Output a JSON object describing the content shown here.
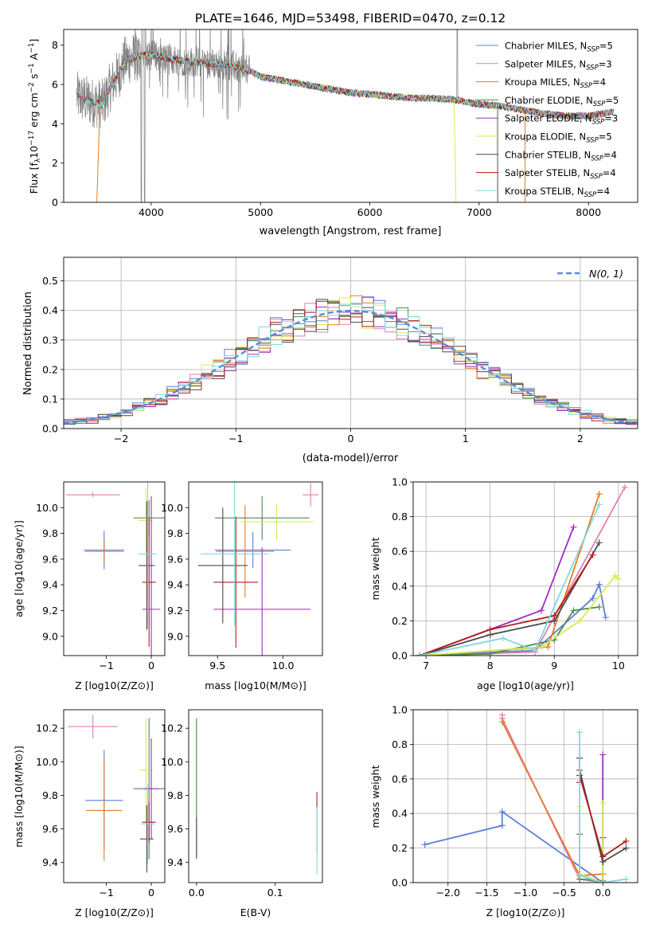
{
  "title": "PLATE=1646, MJD=53498, FIBERID=0470, z=0.12",
  "colors": {
    "Chabrier MILES": "#5b7fd6",
    "Salpeter MILES": "#e27fb5",
    "Kroupa MILES": "#e87a20",
    "Chabrier ELODIE": "#4f8a52",
    "Salpeter ELODIE": "#9d2ec0",
    "Kroupa ELODIE": "#d7ea55",
    "Chabrier STELIB": "#4a4a4a",
    "Salpeter STELIB": "#b11d1d",
    "Kroupa STELIB": "#7fd9dc",
    "data": "#7f7f7f",
    "gaussian": "#5b8ad6"
  },
  "chart_data": [
    {
      "id": "spectrum",
      "type": "line",
      "title": "PLATE=1646, MJD=53498, FIBERID=0470, z=0.12",
      "xlabel": "wavelength [Angstrom, rest frame]",
      "ylabel_main": "Flux [f",
      "ylabel_sub": "λ",
      "ylabel_rest": "10",
      "ylabel_exp": "−17",
      "ylabel_units": "erg cm",
      "ylabel_units_sup": "−2",
      "ylabel_s": "s",
      "ylabel_s_sup": "−1",
      "ylabel_A": "A",
      "ylabel_A_sup": "−1",
      "ylabel_close": "]",
      "xlim": [
        3200,
        8450
      ],
      "ylim": [
        0,
        8.8
      ],
      "xticks": [
        4000,
        5000,
        6000,
        7000,
        8000
      ],
      "xticklabels": [
        "4000",
        "5000",
        "6000",
        "7000",
        "8000"
      ],
      "yticks": [
        0,
        2,
        4,
        6,
        8
      ],
      "yticklabels": [
        "0",
        "2",
        "4",
        "6",
        "8"
      ],
      "legend_position": "upper-right",
      "legend": [
        {
          "name": "Chabrier MILES",
          "nssp": "5"
        },
        {
          "name": "Salpeter MILES",
          "nssp": "3"
        },
        {
          "name": "Kroupa MILES",
          "nssp": "4"
        },
        {
          "name": "Chabrier ELODIE",
          "nssp": "5"
        },
        {
          "name": "Salpeter ELODIE",
          "nssp": "3"
        },
        {
          "name": "Kroupa ELODIE",
          "nssp": "5"
        },
        {
          "name": "Chabrier STELIB",
          "nssp": "4"
        },
        {
          "name": "Salpeter STELIB",
          "nssp": "4"
        },
        {
          "name": "Kroupa STELIB",
          "nssp": "4"
        }
      ],
      "legend_ssp_sub": "SSP",
      "continuum_knots": {
        "x": [
          3320,
          3450,
          3560,
          3620,
          3700,
          3760,
          3850,
          3950,
          4050,
          4150,
          4300,
          4500,
          4700,
          4900,
          5000,
          5200,
          5400,
          5600,
          5800,
          6000,
          6200,
          6400,
          6600,
          6800,
          7000,
          7200,
          7400,
          7600,
          7800,
          8000,
          8230
        ],
        "y": [
          5.4,
          5.1,
          5.0,
          5.8,
          6.5,
          7.2,
          7.4,
          7.5,
          7.5,
          7.3,
          7.2,
          7.1,
          7.0,
          6.7,
          6.4,
          6.2,
          6.0,
          5.8,
          5.6,
          5.5,
          5.4,
          5.3,
          5.3,
          5.2,
          5.0,
          4.9,
          4.7,
          4.5,
          4.4,
          4.4,
          4.6
        ]
      }
    },
    {
      "id": "residuals",
      "type": "line",
      "xlabel": "(data-model)/error",
      "ylabel": "Normed distribution",
      "xlim": [
        -2.5,
        2.5
      ],
      "ylim": [
        0,
        0.58
      ],
      "xticks": [
        -2,
        -1,
        0,
        1,
        2
      ],
      "xticklabels": [
        "−2",
        "−1",
        "0",
        "1",
        "2"
      ],
      "yticks": [
        0,
        0.1,
        0.2,
        0.3,
        0.4,
        0.5
      ],
      "yticklabels": [
        "0.0",
        "0.1",
        "0.2",
        "0.3",
        "0.4",
        "0.5"
      ],
      "legend": "N(0, 1)",
      "legend_position": "upper-right",
      "grid": true,
      "series_note": "step histograms, one per model"
    },
    {
      "id": "age-vs-Z",
      "type": "scatter",
      "xlabel": "Z [log10(Z/Z⊙)]",
      "ylabel": "age [log10(age/yr)]",
      "xlim": [
        -1.95,
        0.3
      ],
      "ylim": [
        8.85,
        10.2
      ],
      "xticks": [
        -1,
        0
      ],
      "xticklabels": [
        "−1",
        "0"
      ],
      "yticks": [
        9.0,
        9.2,
        9.4,
        9.6,
        9.8,
        10.0
      ],
      "yticklabels": [
        "9.0",
        "9.2",
        "9.4",
        "9.6",
        "9.8",
        "10.0"
      ],
      "points": [
        {
          "model": "Salpeter MILES",
          "x": -1.3,
          "y": 10.1,
          "xerr": 0.6,
          "yerr": 0.02
        },
        {
          "model": "Chabrier MILES",
          "x": -1.05,
          "y": 9.67,
          "xerr": 0.45,
          "yerr": 0.15
        },
        {
          "model": "Kroupa MILES",
          "x": -1.05,
          "y": 9.66,
          "xerr": 0.43,
          "yerr": 0.09
        },
        {
          "model": "Chabrier ELODIE",
          "x": -0.05,
          "y": 9.92,
          "xerr": 0.35,
          "yerr": 0.14
        },
        {
          "model": "Kroupa ELODIE",
          "x": -0.12,
          "y": 9.9,
          "xerr": 0.15,
          "yerr": 0.25
        },
        {
          "model": "Salpeter ELODIE",
          "x": 0.0,
          "y": 9.21,
          "xerr": 0.2,
          "yerr": 0.88
        },
        {
          "model": "Chabrier STELIB",
          "x": -0.1,
          "y": 9.55,
          "xerr": 0.18,
          "yerr": 0.5
        },
        {
          "model": "Salpeter STELIB",
          "x": -0.05,
          "y": 9.42,
          "xerr": 0.15,
          "yerr": 0.5
        },
        {
          "model": "Kroupa STELIB",
          "x": -0.08,
          "y": 9.64,
          "xerr": 0.2,
          "yerr": 0.58
        }
      ]
    },
    {
      "id": "age-vs-mass",
      "type": "scatter",
      "xlabel": "mass [log10(M/M⊙)]",
      "xlim": [
        9.28,
        10.3
      ],
      "ylim": [
        8.85,
        10.2
      ],
      "xticks": [
        9.5,
        10.0
      ],
      "xticklabels": [
        "9.5",
        "10.0"
      ],
      "yticks": [
        9.0,
        9.2,
        9.4,
        9.6,
        9.8,
        10.0
      ],
      "yticklabels": [
        "9.0",
        "9.2",
        "9.4",
        "9.6",
        "9.8",
        "10.0"
      ],
      "points": [
        {
          "model": "Salpeter MILES",
          "x": 10.21,
          "y": 10.1,
          "xerr": 0.06,
          "yerr": 0.09
        },
        {
          "model": "Chabrier MILES",
          "x": 9.77,
          "y": 9.67,
          "xerr": 0.29,
          "yerr": 0.14
        },
        {
          "model": "Kroupa MILES",
          "x": 9.71,
          "y": 9.66,
          "xerr": 0.22,
          "yerr": 0.36
        },
        {
          "model": "Chabrier ELODIE",
          "x": 9.84,
          "y": 9.92,
          "xerr": 0.36,
          "yerr": 0.17
        },
        {
          "model": "Kroupa ELODIE",
          "x": 9.95,
          "y": 9.89,
          "xerr": 0.28,
          "yerr": 0.14
        },
        {
          "model": "Salpeter ELODIE",
          "x": 9.84,
          "y": 9.21,
          "xerr": 0.37,
          "yerr": 0.48
        },
        {
          "model": "Chabrier STELIB",
          "x": 9.54,
          "y": 9.55,
          "xerr": 0.19,
          "yerr": 0.45
        },
        {
          "model": "Salpeter STELIB",
          "x": 9.64,
          "y": 9.42,
          "xerr": 0.17,
          "yerr": 0.51
        },
        {
          "model": "Kroupa STELIB",
          "x": 9.63,
          "y": 9.64,
          "xerr": 0.26,
          "yerr": 0.56
        }
      ]
    },
    {
      "id": "massweight-vs-age",
      "type": "line",
      "xlabel": "age [log10(age/yr)]",
      "ylabel": "mass weight",
      "xlim": [
        6.8,
        10.3
      ],
      "ylim": [
        0,
        1.0
      ],
      "xticks": [
        7,
        8,
        9,
        10
      ],
      "xticklabels": [
        "7",
        "8",
        "9",
        "10"
      ],
      "yticks": [
        0,
        0.2,
        0.4,
        0.6,
        0.8,
        1.0
      ],
      "yticklabels": [
        "0.0",
        "0.2",
        "0.4",
        "0.6",
        "0.8",
        "1.0"
      ],
      "grid": true,
      "series": [
        {
          "model": "Chabrier MILES",
          "x": [
            6.9,
            8.7,
            9.6,
            9.7,
            9.8
          ],
          "y": [
            0.0,
            0.03,
            0.33,
            0.41,
            0.22
          ]
        },
        {
          "model": "Salpeter MILES",
          "x": [
            6.9,
            8.7,
            10.1
          ],
          "y": [
            0.0,
            0.02,
            0.97
          ]
        },
        {
          "model": "Kroupa MILES",
          "x": [
            6.9,
            8.5,
            8.9,
            9.7
          ],
          "y": [
            0.0,
            0.04,
            0.05,
            0.93
          ]
        },
        {
          "model": "Chabrier ELODIE",
          "x": [
            6.9,
            8.0,
            9.0,
            9.3,
            9.7
          ],
          "y": [
            0.0,
            0.01,
            0.09,
            0.26,
            0.28
          ]
        },
        {
          "model": "Salpeter ELODIE",
          "x": [
            6.9,
            8.8,
            9.3
          ],
          "y": [
            0.0,
            0.26,
            0.74
          ]
        },
        {
          "model": "Kroupa ELODIE",
          "x": [
            6.9,
            8.8,
            9.4,
            9.95,
            10.0
          ],
          "y": [
            0.0,
            0.05,
            0.2,
            0.46,
            0.44
          ]
        },
        {
          "model": "Chabrier STELIB",
          "x": [
            6.9,
            8.0,
            9.0,
            9.7
          ],
          "y": [
            0.0,
            0.12,
            0.2,
            0.65
          ]
        },
        {
          "model": "Salpeter STELIB",
          "x": [
            6.9,
            8.0,
            9.0,
            9.6
          ],
          "y": [
            0.0,
            0.15,
            0.23,
            0.58
          ]
        },
        {
          "model": "Kroupa STELIB",
          "x": [
            6.9,
            8.2,
            8.7,
            9.7
          ],
          "y": [
            0.0,
            0.1,
            0.03,
            0.87
          ]
        }
      ]
    },
    {
      "id": "mass-vs-Z",
      "type": "scatter",
      "xlabel": "Z [log10(Z/Z⊙)]",
      "ylabel": "mass [log10(M/M⊙)]",
      "xlim": [
        -1.95,
        0.3
      ],
      "ylim": [
        9.28,
        10.31
      ],
      "xticks": [
        -1,
        0
      ],
      "xticklabels": [
        "−1",
        "0"
      ],
      "yticks": [
        9.4,
        9.6,
        9.8,
        10.0,
        10.2
      ],
      "yticklabels": [
        "9.4",
        "9.6",
        "9.8",
        "10.0",
        "10.2"
      ],
      "points": [
        {
          "model": "Salpeter MILES",
          "x": -1.3,
          "y": 10.21,
          "xerr": 0.55,
          "yerr": 0.07
        },
        {
          "model": "Chabrier MILES",
          "x": -1.05,
          "y": 9.77,
          "xerr": 0.42,
          "yerr": 0.3
        },
        {
          "model": "Kroupa MILES",
          "x": -1.05,
          "y": 9.71,
          "xerr": 0.4,
          "yerr": 0.3
        },
        {
          "model": "Chabrier ELODIE",
          "x": -0.05,
          "y": 9.84,
          "xerr": 0.35,
          "yerr": 0.42
        },
        {
          "model": "Kroupa ELODIE",
          "x": -0.12,
          "y": 9.95,
          "xerr": 0.15,
          "yerr": 0.31
        },
        {
          "model": "Salpeter ELODIE",
          "x": 0.0,
          "y": 9.84,
          "xerr": 0.17,
          "yerr": 0.3
        },
        {
          "model": "Chabrier STELIB",
          "x": -0.1,
          "y": 9.54,
          "xerr": 0.15,
          "yerr": 0.2
        },
        {
          "model": "Salpeter STELIB",
          "x": -0.05,
          "y": 9.64,
          "xerr": 0.15,
          "yerr": 0.12
        },
        {
          "model": "Kroupa STELIB",
          "x": -0.08,
          "y": 9.63,
          "xerr": 0.15,
          "yerr": 0.24
        }
      ]
    },
    {
      "id": "mass-vs-ebv",
      "type": "scatter",
      "xlabel": "E(B-V)",
      "xlim": [
        -0.01,
        0.16
      ],
      "ylim": [
        9.28,
        10.31
      ],
      "xticks": [
        0.0,
        0.1
      ],
      "xticklabels": [
        "0.0",
        "0.1"
      ],
      "yticks": [
        9.4,
        9.6,
        9.8,
        10.0,
        10.2
      ],
      "yticklabels": [
        "9.4",
        "9.6",
        "9.8",
        "10.0",
        "10.2"
      ],
      "points": [
        {
          "model": "Kroupa ELODIE",
          "x": 0.0,
          "y": 9.95,
          "xerr": 0.0,
          "yerr": 0.3
        },
        {
          "model": "Chabrier ELODIE",
          "x": 0.0,
          "y": 9.84,
          "xerr": 0.0,
          "yerr": 0.42
        },
        {
          "model": "Chabrier STELIB",
          "x": 0.0,
          "y": 9.55,
          "xerr": 0.0,
          "yerr": 0.12
        },
        {
          "model": "Salpeter STELIB",
          "x": 0.153,
          "y": 9.64,
          "xerr": 0.0,
          "yerr": 0.18
        },
        {
          "model": "Kroupa STELIB",
          "x": 0.153,
          "y": 9.53,
          "xerr": 0.0,
          "yerr": 0.2
        }
      ]
    },
    {
      "id": "massweight-vs-Z",
      "type": "line",
      "xlabel": "Z [log10(Z/Z⊙)]",
      "ylabel": "mass weight",
      "xlim": [
        -2.45,
        0.45
      ],
      "ylim": [
        0,
        1.0
      ],
      "xticks": [
        -2.0,
        -1.5,
        -1.0,
        -0.5,
        0.0
      ],
      "xticklabels": [
        "−2.0",
        "−1.5",
        "−1.0",
        "−0.5",
        "0.0"
      ],
      "yticks": [
        0,
        0.2,
        0.4,
        0.6,
        0.8,
        1.0
      ],
      "yticklabels": [
        "0.0",
        "0.2",
        "0.4",
        "0.6",
        "0.8",
        "1.0"
      ],
      "grid": true,
      "series": [
        {
          "model": "Chabrier MILES",
          "x": [
            -2.3,
            -1.3,
            -1.3,
            0.0
          ],
          "y": [
            0.22,
            0.33,
            0.41,
            0.0
          ]
        },
        {
          "model": "Salpeter MILES",
          "x": [
            -1.3,
            -1.3,
            -0.3,
            0.0
          ],
          "y": [
            0.97,
            0.95,
            0.02,
            0.0
          ]
        },
        {
          "model": "Kroupa MILES",
          "x": [
            -1.3,
            -0.3,
            0.0,
            0.0
          ],
          "y": [
            0.93,
            0.04,
            0.05,
            0.0
          ]
        },
        {
          "model": "Chabrier ELODIE",
          "x": [
            -0.3,
            -0.3,
            0.0,
            0.0
          ],
          "y": [
            0.28,
            0.02,
            0.01,
            0.26
          ]
        },
        {
          "model": "Salpeter ELODIE",
          "x": [
            0.0,
            0.0,
            0.0
          ],
          "y": [
            0.74,
            0.26,
            0.0
          ]
        },
        {
          "model": "Kroupa ELODIE",
          "x": [
            -0.3,
            -0.3,
            0.0,
            0.0
          ],
          "y": [
            0.44,
            0.05,
            0.0,
            0.46
          ]
        },
        {
          "model": "Chabrier STELIB",
          "x": [
            -0.3,
            -0.3,
            0.0,
            0.3
          ],
          "y": [
            0.72,
            0.65,
            0.12,
            0.2
          ]
        },
        {
          "model": "Salpeter STELIB",
          "x": [
            -0.3,
            -0.3,
            0.0,
            0.3
          ],
          "y": [
            0.58,
            0.62,
            0.15,
            0.24
          ]
        },
        {
          "model": "Kroupa STELIB",
          "x": [
            -0.3,
            -0.3,
            0.0,
            0.3
          ],
          "y": [
            0.87,
            0.04,
            0.0,
            0.02
          ]
        }
      ]
    }
  ]
}
